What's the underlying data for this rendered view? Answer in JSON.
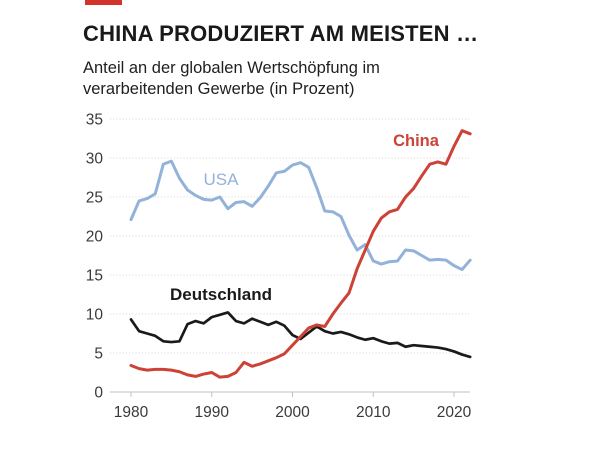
{
  "header": {
    "kicker_color": "#d2342c",
    "title": "CHINA PRODUZIERT AM MEISTEN …",
    "subtitle_line1": "Anteil an der globalen Wertschöpfung im",
    "subtitle_line2": "verarbeitenden Gewerbe (in Prozent)"
  },
  "chart_data": {
    "type": "line",
    "title": "CHINA PRODUZIERT AM MEISTEN …",
    "subtitle": "Anteil an der globalen Wertschöpfung im verarbeitenden Gewerbe (in Prozent)",
    "x": [
      1980,
      1981,
      1982,
      1983,
      1984,
      1985,
      1986,
      1987,
      1988,
      1989,
      1990,
      1991,
      1992,
      1993,
      1994,
      1995,
      1996,
      1997,
      1998,
      1999,
      2000,
      2001,
      2002,
      2003,
      2004,
      2005,
      2006,
      2007,
      2008,
      2009,
      2010,
      2011,
      2012,
      2013,
      2014,
      2015,
      2016,
      2017,
      2018,
      2019,
      2020,
      2021,
      2022
    ],
    "series": [
      {
        "name": "USA",
        "color": "#93b2d9",
        "values": [
          22.1,
          24.5,
          24.8,
          25.4,
          29.2,
          29.6,
          27.4,
          25.9,
          25.2,
          24.7,
          24.6,
          25.0,
          23.5,
          24.3,
          24.4,
          23.8,
          24.9,
          26.4,
          28.1,
          28.3,
          29.1,
          29.4,
          28.8,
          26.2,
          23.2,
          23.1,
          22.5,
          20.1,
          18.2,
          18.9,
          16.8,
          16.4,
          16.7,
          16.8,
          18.2,
          18.1,
          17.5,
          16.9,
          17.0,
          16.9,
          16.2,
          15.7,
          16.9
        ]
      },
      {
        "name": "Deutschland",
        "color": "#1a1a1a",
        "values": [
          9.3,
          7.8,
          7.5,
          7.2,
          6.5,
          6.4,
          6.5,
          8.7,
          9.1,
          8.8,
          9.6,
          9.9,
          10.2,
          9.1,
          8.8,
          9.4,
          9.0,
          8.6,
          9.0,
          8.5,
          7.3,
          6.8,
          7.6,
          8.4,
          7.8,
          7.5,
          7.7,
          7.4,
          7.0,
          6.7,
          6.9,
          6.5,
          6.2,
          6.3,
          5.8,
          6.0,
          5.9,
          5.8,
          5.7,
          5.5,
          5.2,
          4.8,
          4.5
        ]
      },
      {
        "name": "China",
        "color": "#cc4237",
        "values": [
          3.4,
          3.0,
          2.8,
          2.9,
          2.9,
          2.8,
          2.6,
          2.2,
          2.0,
          2.3,
          2.5,
          1.9,
          2.0,
          2.5,
          3.8,
          3.3,
          3.6,
          4.0,
          4.4,
          4.9,
          6.0,
          7.1,
          8.2,
          8.6,
          8.4,
          10.0,
          11.4,
          12.7,
          15.8,
          18.2,
          20.6,
          22.3,
          23.1,
          23.4,
          25.0,
          26.1,
          27.7,
          29.2,
          29.5,
          29.2,
          31.5,
          33.5,
          33.1
        ]
      }
    ],
    "ylim": [
      0,
      35
    ],
    "yticks": [
      0,
      5,
      10,
      15,
      20,
      25,
      30,
      35
    ],
    "xticks": [
      1980,
      1990,
      2000,
      2010,
      2020
    ],
    "grid": true,
    "legend": "inline-labels"
  }
}
